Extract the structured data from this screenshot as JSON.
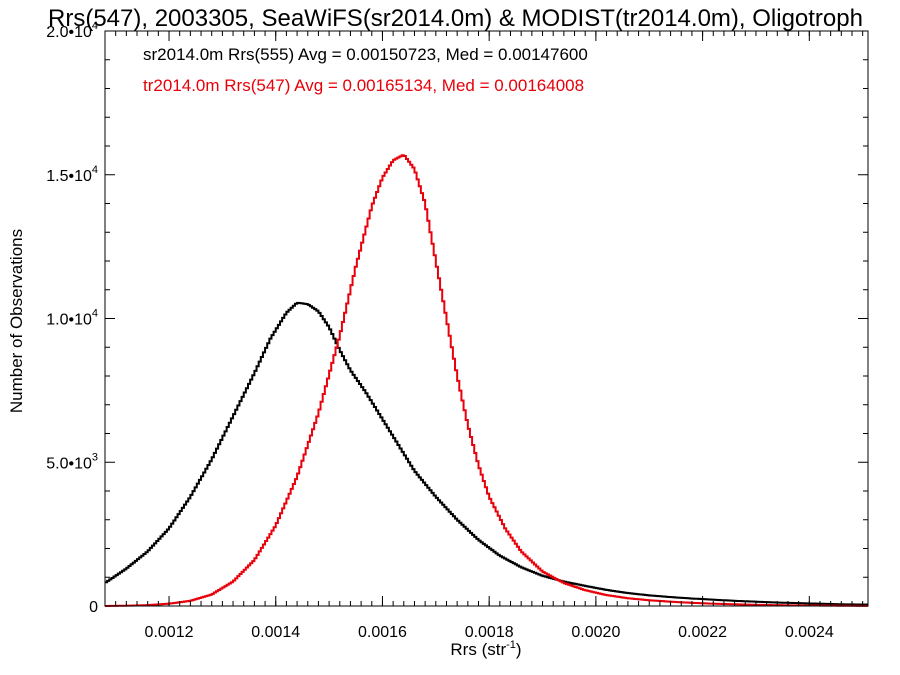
{
  "chart_data": {
    "type": "line",
    "title": "Rrs(547), 2003305, SeaWiFS(sr2014.0m) & MODIST(tr2014.0m), Oligotroph",
    "xlabel": "Rrs (str",
    "xlabel_sup": "-1",
    "xlabel_close": ")",
    "ylabel": "Number of Observations",
    "xlim": [
      0.00108,
      0.00251
    ],
    "ylim": [
      0,
      20000
    ],
    "x_ticks": [
      {
        "value": 0.0012,
        "label": "0.0012"
      },
      {
        "value": 0.0014,
        "label": "0.0014"
      },
      {
        "value": 0.0016,
        "label": "0.0016"
      },
      {
        "value": 0.0018,
        "label": "0.0018"
      },
      {
        "value": 0.002,
        "label": "0.0020"
      },
      {
        "value": 0.0022,
        "label": "0.0022"
      },
      {
        "value": 0.0024,
        "label": "0.0024"
      }
    ],
    "y_ticks": [
      {
        "value": 0,
        "base": "0",
        "exp": ""
      },
      {
        "value": 5000,
        "base": "5.0•10",
        "exp": "3"
      },
      {
        "value": 10000,
        "base": "1.0•10",
        "exp": "4"
      },
      {
        "value": 15000,
        "base": "1.5•10",
        "exp": "4"
      },
      {
        "value": 20000,
        "base": "2.0•10",
        "exp": "4"
      }
    ],
    "grid": false,
    "legend_position": "top-left",
    "series": [
      {
        "name": "sr2014.0m Rrs(555) Avg = 0.00150723, Med = 0.00147600",
        "color": "#000000",
        "x": [
          0.00108,
          0.00112,
          0.00116,
          0.0012,
          0.00124,
          0.00128,
          0.00132,
          0.00136,
          0.00139,
          0.00142,
          0.00144,
          0.00146,
          0.00148,
          0.0015,
          0.00152,
          0.00154,
          0.00157,
          0.0016,
          0.00163,
          0.00166,
          0.0017,
          0.00174,
          0.00178,
          0.00182,
          0.00186,
          0.0019,
          0.00194,
          0.00198,
          0.00202,
          0.00206,
          0.0021,
          0.00214,
          0.00218,
          0.00222,
          0.00226,
          0.0023,
          0.00234,
          0.00238,
          0.00242,
          0.00246,
          0.0025
        ],
        "y": [
          800,
          1300,
          1900,
          2700,
          3800,
          5100,
          6600,
          8100,
          9300,
          10200,
          10550,
          10500,
          10250,
          9700,
          8900,
          8200,
          7400,
          6500,
          5600,
          4700,
          3800,
          3000,
          2300,
          1750,
          1350,
          1050,
          850,
          700,
          560,
          450,
          370,
          310,
          260,
          220,
          180,
          150,
          120,
          100,
          80,
          60,
          50
        ]
      },
      {
        "name": "tr2014.0m Rrs(547) Avg = 0.00165134, Med = 0.00164008",
        "color": "#e8000a",
        "x": [
          0.00108,
          0.00112,
          0.00116,
          0.0012,
          0.00124,
          0.00128,
          0.00132,
          0.00136,
          0.0014,
          0.00144,
          0.00148,
          0.00152,
          0.00155,
          0.00158,
          0.0016,
          0.00162,
          0.00164,
          0.00166,
          0.00168,
          0.0017,
          0.00172,
          0.00174,
          0.00176,
          0.00178,
          0.0018,
          0.00183,
          0.00186,
          0.0019,
          0.00194,
          0.00198,
          0.00202,
          0.00206,
          0.0021,
          0.00214,
          0.00218,
          0.00222,
          0.00226,
          0.0023,
          0.00234,
          0.00238,
          0.00242,
          0.00246,
          0.0025
        ],
        "y": [
          0,
          10,
          30,
          80,
          180,
          400,
          850,
          1600,
          2800,
          4500,
          6700,
          9400,
          11800,
          13900,
          14900,
          15500,
          15700,
          15200,
          14000,
          12000,
          10000,
          8000,
          6300,
          4900,
          3800,
          2700,
          1900,
          1200,
          800,
          550,
          380,
          270,
          200,
          150,
          110,
          80,
          60,
          40,
          30,
          20,
          15,
          10,
          5
        ]
      }
    ]
  }
}
